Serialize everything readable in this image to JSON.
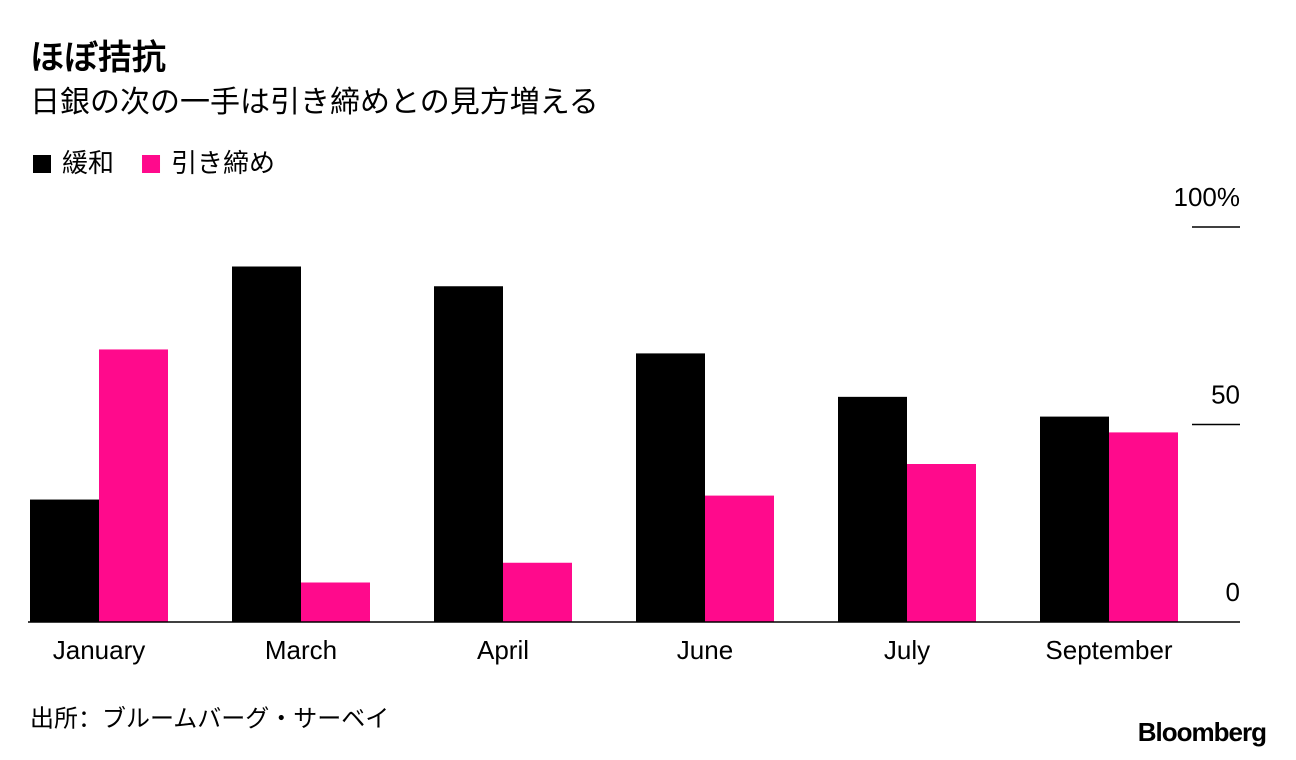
{
  "chart_data": {
    "type": "bar",
    "title": "ほぼ拮抗",
    "subtitle": "日銀の次の一手は引き締めとの見方増える",
    "categories": [
      "January",
      "March",
      "April",
      "June",
      "July",
      "September"
    ],
    "series": [
      {
        "name": "緩和",
        "color": "#000000",
        "values": [
          31,
          90,
          85,
          68,
          57,
          52
        ]
      },
      {
        "name": "引き締め",
        "color": "#ff0a8c",
        "values": [
          69,
          10,
          15,
          32,
          40,
          48
        ]
      }
    ],
    "ylim": [
      0,
      100
    ],
    "yticks": [
      0,
      50,
      {
        "value": 100,
        "label": "100%"
      }
    ],
    "source": "出所：ブルームバーグ・サーベイ",
    "logo": "Bloomberg"
  }
}
